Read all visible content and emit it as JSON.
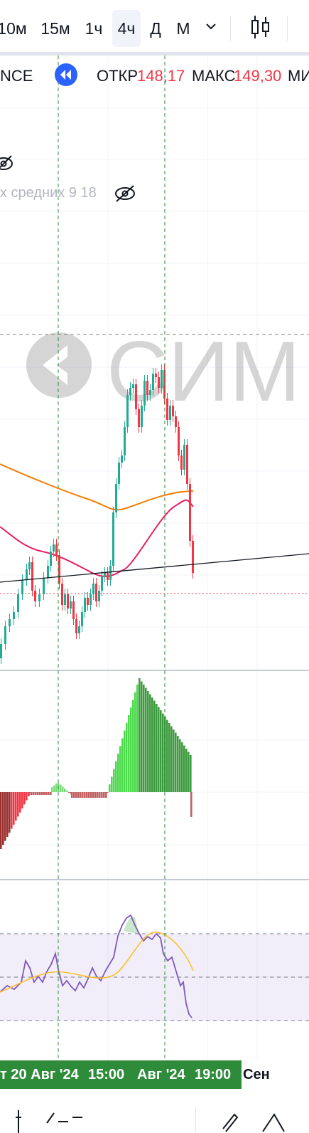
{
  "toolbar": {
    "timeframes": [
      "10м",
      "15м",
      "1ч",
      "4ч",
      "Д",
      "М"
    ],
    "active_timeframe": "4ч"
  },
  "legend": {
    "symbol_fragment": "NCE",
    "open_label": "ОТКР",
    "open_value": "148,17",
    "high_label": "МАКС",
    "high_value": "149,30",
    "low_label_fragment": "МИ"
  },
  "indicators": {
    "ma_label": "х средних 9 18"
  },
  "watermark": {
    "text": "СИМ"
  },
  "time_axis": {
    "labels": [
      "т 20 Авг '24",
      "15:00",
      "Авг '24",
      "19:00",
      "Сен"
    ]
  },
  "colors": {
    "up": "#22ab94",
    "down": "#f23645",
    "ma_fast": "#e91e63",
    "ma_slow": "#f57c00",
    "rsi": "#7e57c2",
    "rsi_ma": "#fbc02d",
    "crosshair_active": "#2e8b3a"
  }
}
